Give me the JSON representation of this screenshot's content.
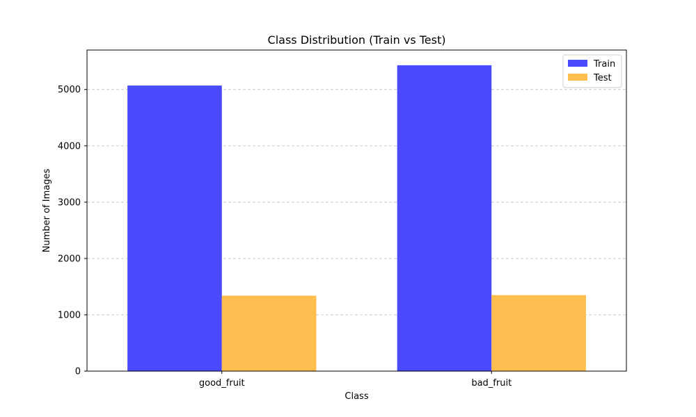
{
  "chart_data": {
    "type": "bar",
    "title": "Class Distribution (Train vs Test)",
    "xlabel": "Class",
    "ylabel": "Number of Images",
    "categories": [
      "good_fruit",
      "bad_fruit"
    ],
    "series": [
      {
        "name": "Train",
        "values": [
          5070,
          5430
        ],
        "color": "#4a4aff"
      },
      {
        "name": "Test",
        "values": [
          1340,
          1350
        ],
        "color": "#ffbe4d"
      }
    ],
    "ylim": [
      0,
      5700
    ],
    "yticks": [
      0,
      1000,
      2000,
      3000,
      4000,
      5000
    ],
    "grid": "y-dashed",
    "legend": "top-right"
  }
}
